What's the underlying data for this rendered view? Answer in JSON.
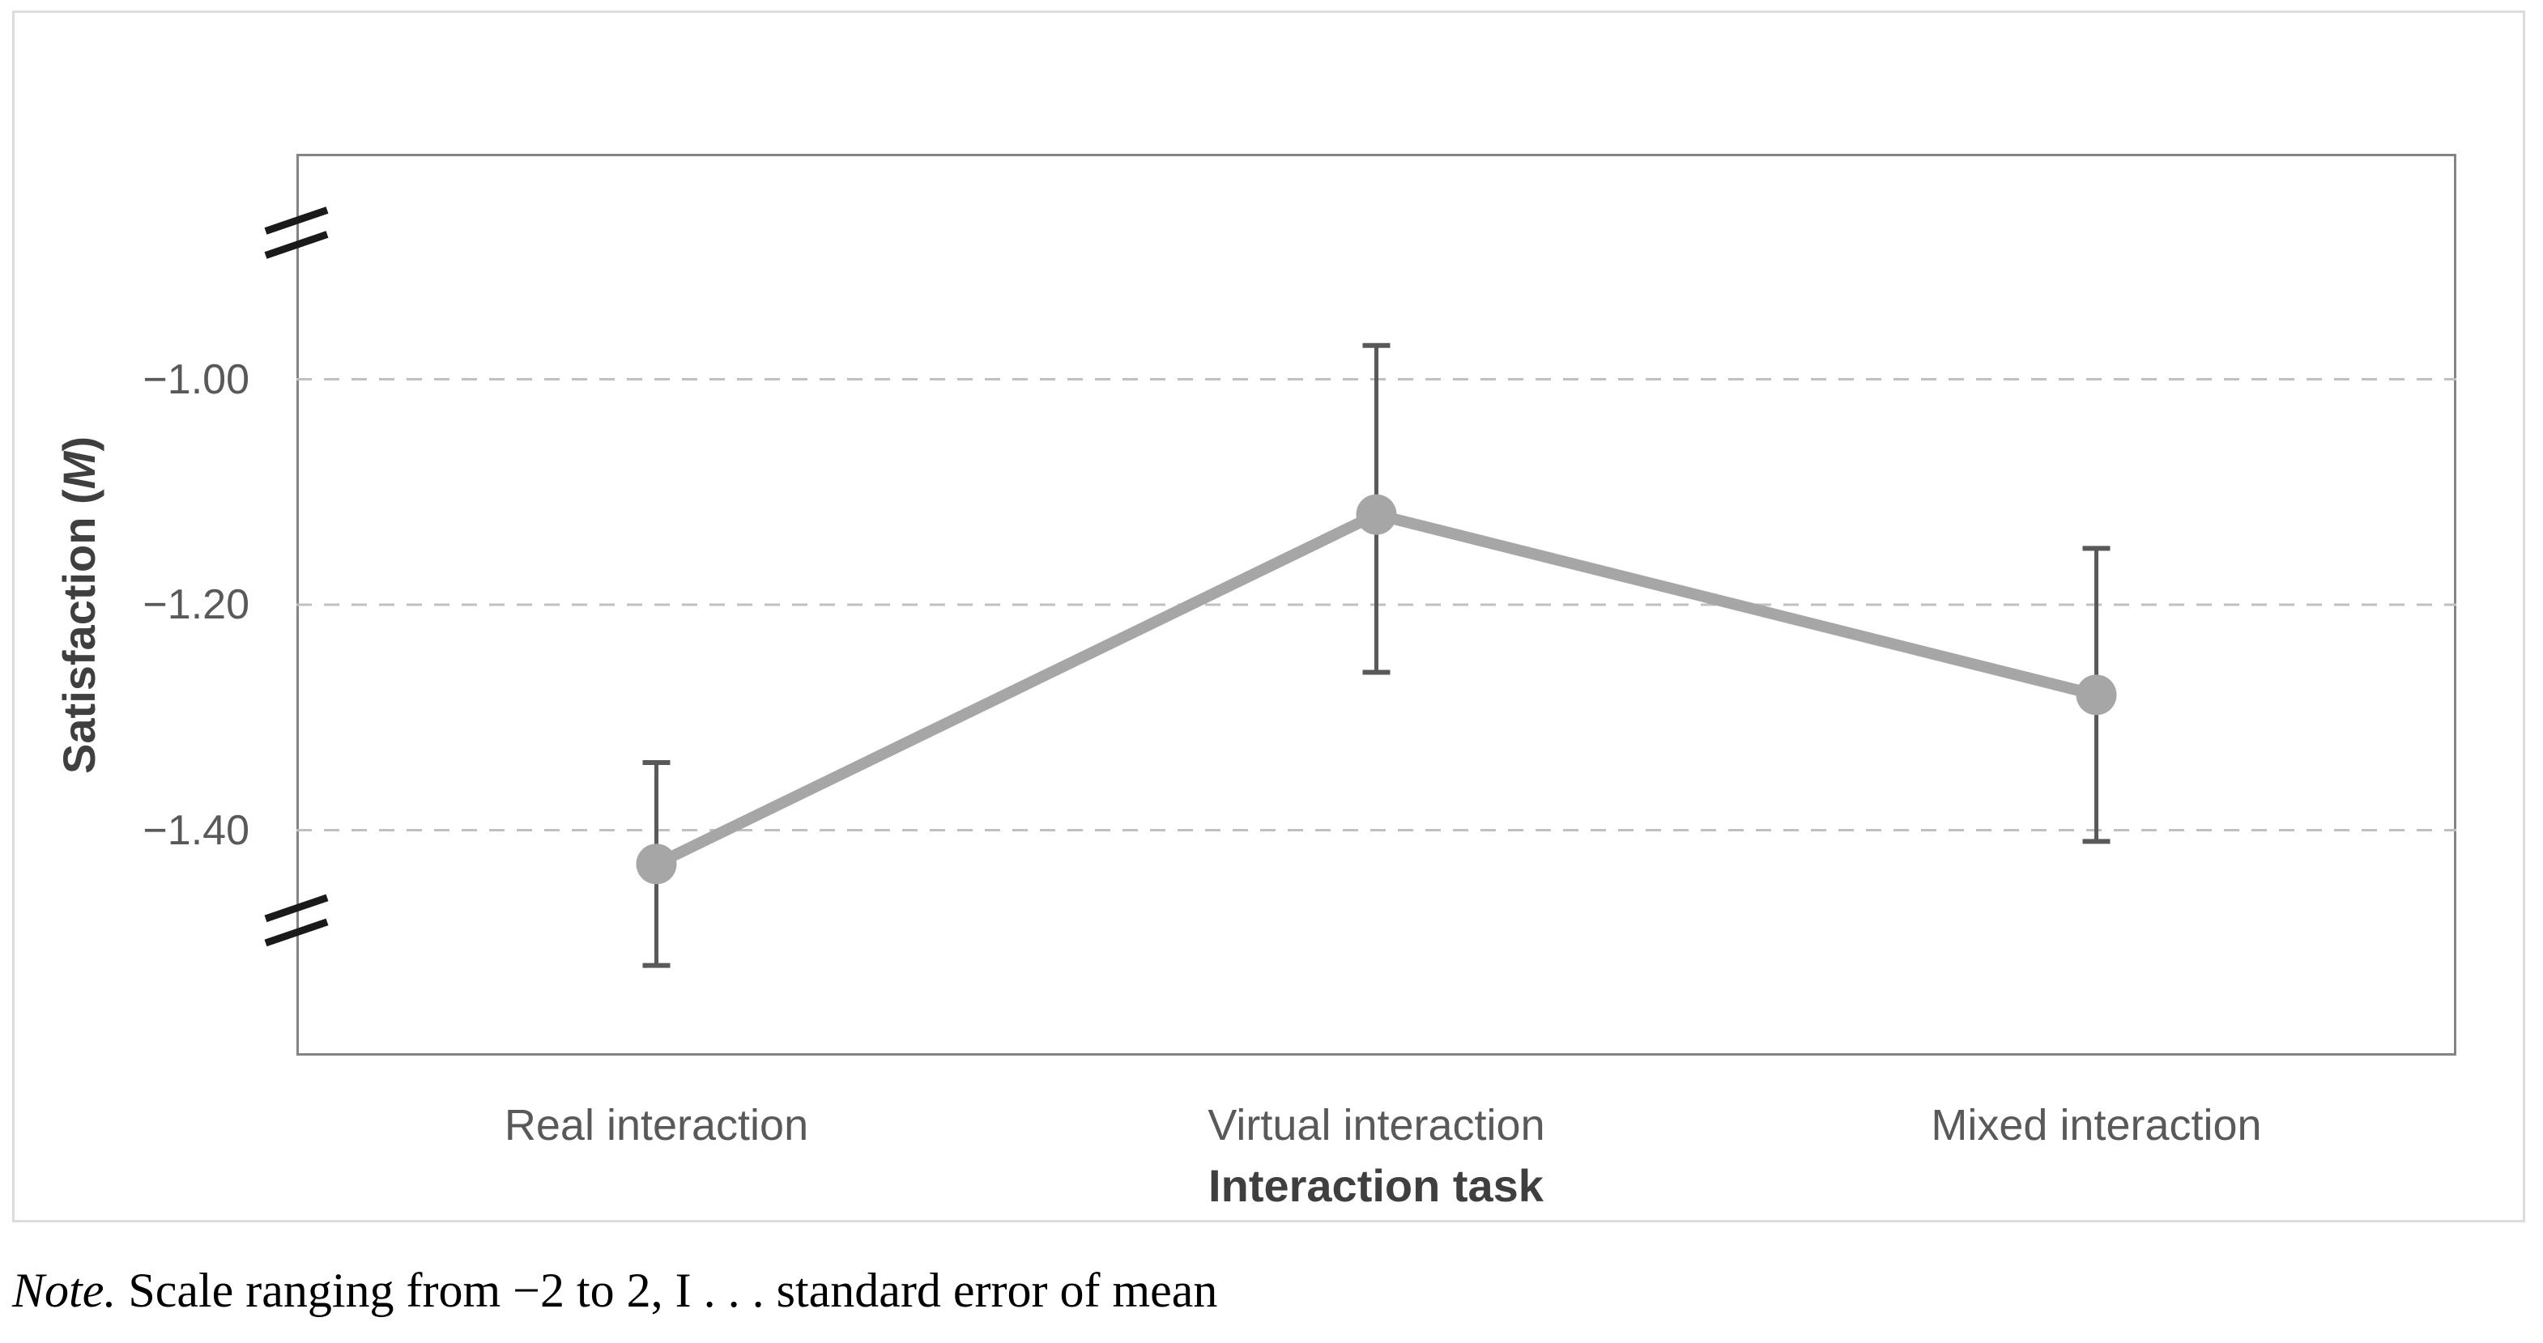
{
  "figure": {
    "kind": "line chart with error bars inside a light gray frame",
    "background": "#ffffff"
  },
  "y_axis": {
    "title_full": "Satisfaction (M)",
    "title_prefix": "Satisfaction (",
    "title_m": "M",
    "title_suffix": ")",
    "tick_labels": [
      "−1.00",
      "−1.20",
      "−1.40"
    ]
  },
  "x_axis": {
    "title": "Interaction task",
    "categories": [
      "Real interaction",
      "Virtual interaction",
      "Mixed interaction"
    ]
  },
  "note": {
    "lead": "Note.",
    "text": " Scale ranging from −2 to 2, I . . . standard error of mean"
  },
  "chart_data": {
    "type": "line",
    "title": "",
    "xlabel": "Interaction task",
    "ylabel": "Satisfaction (M)",
    "categories": [
      "Real interaction",
      "Virtual interaction",
      "Mixed interaction"
    ],
    "series": [
      {
        "name": "Satisfaction (M)",
        "values": [
          -1.43,
          -1.12,
          -1.28
        ],
        "error_upper": [
          -1.34,
          -0.97,
          -1.15
        ],
        "error_lower": [
          -1.52,
          -1.26,
          -1.41
        ]
      }
    ],
    "yticks": [
      {
        "value": -1.0,
        "label": "−1.00"
      },
      {
        "value": -1.2,
        "label": "−1.20"
      },
      {
        "value": -1.4,
        "label": "−1.40"
      }
    ],
    "ylim": [
      -1.6,
      -0.8
    ],
    "axis_breaks_at_values": [
      -0.87,
      -1.48
    ],
    "grid": "horizontal dashed",
    "legend": "none",
    "full_scale_note": "Scale ranging from −2 to 2",
    "error_bar_meaning": "standard error of mean"
  },
  "style": {
    "series_color": "#a6a6a6",
    "error_bar_color": "#595959",
    "grid_color": "#c0c0c0",
    "plot_border_color": "#848484",
    "frame_border_color": "#dcdcdc",
    "break_mark_color": "#1a1a1a",
    "tick_text_color": "#595959",
    "title_text_color": "#3f3f3f",
    "note_text_color": "#000000"
  }
}
